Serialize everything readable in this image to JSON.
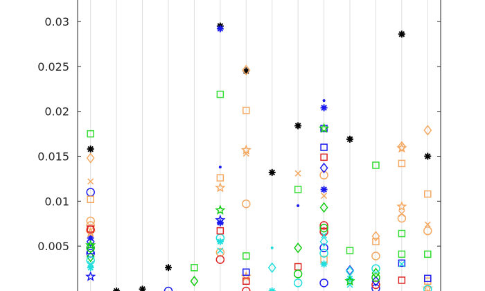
{
  "chart_data": {
    "type": "scatter",
    "title": "",
    "xlabel": "",
    "ylabel": "",
    "xlim": [
      0.5,
      14.5
    ],
    "ylim": [
      0,
      0.0324
    ],
    "yticks": [
      "0.005",
      "0.01",
      "0.015",
      "0.02",
      "0.025",
      "0.03"
    ],
    "ytick_values": [
      0.005,
      0.01,
      0.015,
      0.02,
      0.025,
      0.03
    ],
    "x_grid": true,
    "y_grid": false,
    "legend": "none",
    "series": [
      {
        "marker": "asterisk",
        "color": "#000000",
        "points": [
          [
            1,
            0.0158
          ],
          [
            2,
            0.0
          ],
          [
            3,
            0.0002
          ],
          [
            4,
            0.0026
          ],
          [
            6,
            0.0295
          ],
          [
            7,
            0.0245
          ],
          [
            8,
            0.0132
          ],
          [
            9,
            0.0184
          ],
          [
            11,
            0.0169
          ],
          [
            13,
            0.0286
          ],
          [
            14,
            0.015
          ]
        ]
      },
      {
        "marker": "square",
        "color": "#33dd33",
        "points": [
          [
            1,
            0.0175
          ],
          [
            5,
            0.0026
          ],
          [
            6,
            0.0219
          ],
          [
            7,
            0.0039
          ],
          [
            9,
            0.0113
          ],
          [
            11,
            0.0045
          ],
          [
            12,
            0.014
          ],
          [
            13,
            0.0064
          ],
          [
            13,
            0.0041
          ],
          [
            14,
            0.0041
          ]
        ]
      },
      {
        "marker": "diamond",
        "color": "#f5a860",
        "points": [
          [
            1,
            0.0148
          ],
          [
            7,
            0.0246
          ],
          [
            12,
            0.0061
          ],
          [
            13,
            0.0161
          ],
          [
            14,
            0.0179
          ]
        ]
      },
      {
        "marker": "x",
        "color": "#f5a860",
        "points": [
          [
            1,
            0.0122
          ],
          [
            7,
            0.0153
          ],
          [
            9,
            0.0131
          ],
          [
            10,
            0.0106
          ],
          [
            13,
            0.0086
          ],
          [
            14,
            0.0074
          ]
        ]
      },
      {
        "marker": "circle",
        "color": "#1a1aee",
        "points": [
          [
            1,
            0.011
          ],
          [
            1,
            0.0042
          ],
          [
            4,
            0.0
          ],
          [
            10,
            0.0048
          ],
          [
            10,
            0.0009
          ],
          [
            12,
            0.0003
          ]
        ]
      },
      {
        "marker": "square",
        "color": "#f5a860",
        "points": [
          [
            1,
            0.0102
          ],
          [
            6,
            0.0126
          ],
          [
            7,
            0.0201
          ],
          [
            10,
            0.0035
          ],
          [
            12,
            0.0055
          ],
          [
            13,
            0.0142
          ],
          [
            14,
            0.0108
          ],
          [
            14,
            0.0011
          ]
        ]
      },
      {
        "marker": "circle",
        "color": "#f5a860",
        "points": [
          [
            1,
            0.0078
          ],
          [
            1,
            0.0073
          ],
          [
            6,
            0.0043
          ],
          [
            7,
            0.0097
          ],
          [
            10,
            0.0129
          ],
          [
            12,
            0.0039
          ],
          [
            13,
            0.0081
          ],
          [
            14,
            0.0067
          ]
        ]
      },
      {
        "marker": "circle",
        "color": "#dd2222",
        "points": [
          [
            1,
            0.0068
          ],
          [
            6,
            0.0035
          ],
          [
            7,
            0.0
          ],
          [
            10,
            0.0073
          ],
          [
            10,
            0.0066
          ],
          [
            12,
            0.0007
          ]
        ]
      },
      {
        "marker": "diamond",
        "color": "#1a1aee",
        "points": [
          [
            1,
            0.0055
          ],
          [
            10,
            0.0137
          ],
          [
            11,
            0.0023
          ],
          [
            12,
            0.0011
          ]
        ]
      },
      {
        "marker": "diamond",
        "color": "#11cc11",
        "points": [
          [
            1,
            0.0038
          ],
          [
            5,
            0.0011
          ],
          [
            9,
            0.0048
          ],
          [
            10,
            0.0093
          ],
          [
            12,
            0.002
          ]
        ]
      },
      {
        "marker": "asterisk",
        "color": "#1a1aee",
        "points": [
          [
            1,
            0.0059
          ],
          [
            6,
            0.0292
          ],
          [
            6,
            0.0076
          ],
          [
            10,
            0.0204
          ],
          [
            10,
            0.0113
          ]
        ]
      },
      {
        "marker": "asterisk",
        "color": "#22dddd",
        "points": [
          [
            1,
            0.0026
          ],
          [
            6,
            0.0055
          ],
          [
            8,
            0.0
          ],
          [
            10,
            0.003
          ],
          [
            11,
            0.0014
          ]
        ]
      },
      {
        "marker": "pentagram",
        "color": "#f5a860",
        "points": [
          [
            1,
            0.0065
          ],
          [
            6,
            0.0115
          ],
          [
            7,
            0.0157
          ],
          [
            7,
            0.0016
          ],
          [
            13,
            0.0159
          ],
          [
            13,
            0.0094
          ],
          [
            14,
            0.0003
          ]
        ]
      },
      {
        "marker": "square",
        "color": "#1a1aee",
        "points": [
          [
            1,
            0.0045
          ],
          [
            7,
            0.0021
          ],
          [
            10,
            0.016
          ],
          [
            10,
            0.0181
          ],
          [
            13,
            0.0031
          ],
          [
            14,
            0.0014
          ]
        ]
      },
      {
        "marker": "x",
        "color": "#22dddd",
        "points": [
          [
            1,
            0.003
          ],
          [
            6,
            0.0045
          ],
          [
            10,
            0.0062
          ],
          [
            11,
            0.0007
          ],
          [
            13,
            0.003
          ]
        ]
      },
      {
        "marker": "circle",
        "color": "#22dddd",
        "points": [
          [
            1,
            0.0034
          ],
          [
            6,
            0.0059
          ],
          [
            9,
            0.0009
          ],
          [
            10,
            0.0042
          ],
          [
            12,
            0.0025
          ],
          [
            14,
            0.0002
          ]
        ]
      },
      {
        "marker": "dot",
        "color": "#1a1aee",
        "points": [
          [
            6,
            0.0138
          ],
          [
            9,
            0.0095
          ],
          [
            10,
            0.0212
          ]
        ]
      },
      {
        "marker": "dot",
        "color": "#22dddd",
        "points": [
          [
            8,
            0.0048
          ]
        ]
      },
      {
        "marker": "diamond",
        "color": "#22dddd",
        "points": [
          [
            8,
            0.0026
          ],
          [
            10,
            0.0055
          ],
          [
            11,
            0.0022
          ]
        ]
      },
      {
        "marker": "square",
        "color": "#dd2222",
        "points": [
          [
            1,
            0.0069
          ],
          [
            6,
            0.0067
          ],
          [
            7,
            0.0011
          ],
          [
            9,
            0.0027
          ],
          [
            10,
            0.0149
          ],
          [
            13,
            0.0012
          ]
        ]
      },
      {
        "marker": "pentagram",
        "color": "#11cc11",
        "points": [
          [
            1,
            0.0051
          ],
          [
            6,
            0.009
          ],
          [
            10,
            0.0181
          ],
          [
            11,
            0.0011
          ]
        ]
      },
      {
        "marker": "pentagram",
        "color": "#1a1aee",
        "points": [
          [
            1,
            0.0016
          ],
          [
            6,
            0.0079
          ]
        ]
      },
      {
        "marker": "circle",
        "color": "#11cc11",
        "points": [
          [
            1,
            0.0048
          ],
          [
            9,
            0.0019
          ],
          [
            10,
            0.007
          ],
          [
            12,
            0.0015
          ]
        ]
      }
    ]
  }
}
